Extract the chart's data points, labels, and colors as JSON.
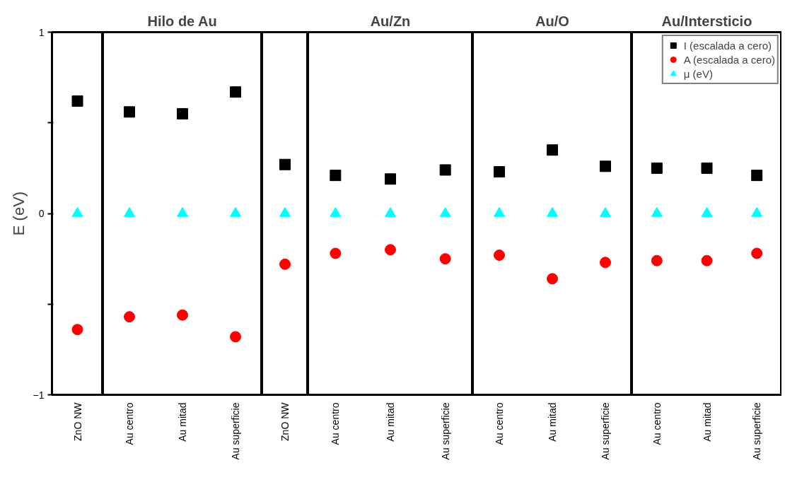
{
  "chart_data": [
    {
      "type": "scatter",
      "ylabel": "E (eV)",
      "categories": [
        "ZnO NW"
      ],
      "ylim": [
        -1,
        1
      ],
      "yticks": [
        -1,
        {
          "value": -0.5,
          "label": null
        },
        0,
        {
          "value": 0.5,
          "label": null
        },
        1
      ],
      "series": [
        {
          "color": "#000000",
          "marker": "square",
          "values": [
            0.62
          ]
        },
        {
          "color": "#ff0000",
          "marker": "circle",
          "values": [
            -0.64
          ]
        },
        {
          "color": "#00ffff",
          "marker": "triangle",
          "values": [
            0
          ]
        }
      ]
    },
    {
      "type": "scatter",
      "title": "Hilo de Au",
      "categories": [
        "Au centro",
        "Au mitad",
        "Au superficie"
      ],
      "ylim": [
        -1,
        1
      ],
      "tick_labels": "x",
      "series": [
        {
          "color": "#000000",
          "marker": "square",
          "values": [
            0.56,
            0.55,
            0.67
          ]
        },
        {
          "color": "#ff0000",
          "marker": "circle",
          "values": [
            -0.57,
            -0.56,
            -0.68
          ]
        },
        {
          "color": "#00ffff",
          "marker": "triangle",
          "values": [
            0,
            0,
            0
          ]
        }
      ]
    },
    {
      "type": "scatter",
      "categories": [
        "ZnO NW"
      ],
      "ylim": [
        -1,
        1
      ],
      "tick_labels": "x",
      "series": [
        {
          "color": "#000000",
          "marker": "square",
          "values": [
            0.27
          ]
        },
        {
          "color": "#ff0000",
          "marker": "circle",
          "values": [
            -0.28
          ]
        },
        {
          "color": "#00ffff",
          "marker": "triangle",
          "values": [
            0
          ]
        }
      ]
    },
    {
      "type": "scatter",
      "title": "Au/Zn",
      "categories": [
        "Au centro",
        "Au mitad",
        "Au superficie"
      ],
      "ylim": [
        -1,
        1
      ],
      "tick_labels": "x",
      "series": [
        {
          "color": "#000000",
          "marker": "square",
          "values": [
            0.21,
            0.19,
            0.24
          ]
        },
        {
          "color": "#ff0000",
          "marker": "circle",
          "values": [
            -0.22,
            -0.2,
            -0.25
          ]
        },
        {
          "color": "#00ffff",
          "marker": "triangle",
          "values": [
            0,
            0,
            0
          ]
        }
      ]
    },
    {
      "type": "scatter",
      "title": "Au/O",
      "categories": [
        "Au centro",
        "Au mitad",
        "Au superficie"
      ],
      "ylim": [
        -1,
        1
      ],
      "tick_labels": "x",
      "series": [
        {
          "color": "#000000",
          "marker": "square",
          "values": [
            0.23,
            0.35,
            0.26
          ]
        },
        {
          "color": "#ff0000",
          "marker": "circle",
          "values": [
            -0.23,
            -0.36,
            -0.27
          ]
        },
        {
          "color": "#00ffff",
          "marker": "triangle",
          "values": [
            0,
            0,
            0
          ]
        }
      ]
    },
    {
      "type": "scatter",
      "title": "Au/Intersticio",
      "categories": [
        "Au centro",
        "Au mitad",
        "Au superficie"
      ],
      "ylim": [
        -1,
        1
      ],
      "tick_labels": "x",
      "legend": "top right",
      "series": [
        {
          "name": "I (escalada a cero)",
          "color": "#000000",
          "marker": "square",
          "values": [
            0.25,
            0.25,
            0.21
          ]
        },
        {
          "name": "A (escalada a cero)",
          "color": "#ff0000",
          "marker": "circle",
          "values": [
            -0.26,
            -0.26,
            -0.22
          ]
        },
        {
          "name": "μ (eV)",
          "color": "#00ffff",
          "marker": "triangle",
          "values": [
            0,
            0,
            0
          ]
        }
      ]
    }
  ]
}
